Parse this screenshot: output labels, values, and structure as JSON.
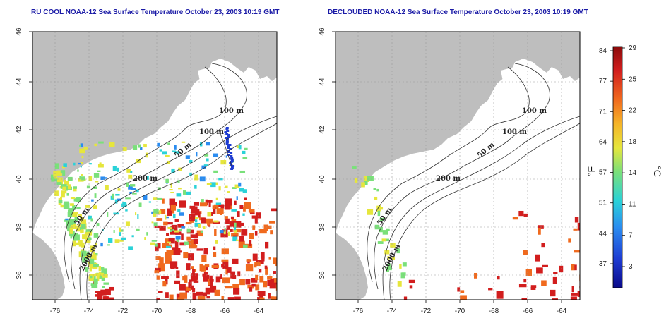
{
  "panels": [
    {
      "id": "left",
      "title": "RU COOL NOAA-12 Sea Surface Temperature October 23, 2003 10:19 GMT",
      "x_ticks": [
        "-76",
        "-74",
        "-72",
        "-70",
        "-68",
        "-66",
        "-64"
      ],
      "y_ticks": [
        "46",
        "44",
        "42",
        "40",
        "38",
        "36"
      ],
      "contour_labels": [
        "100 m",
        "100 m",
        "50 m",
        "200 m",
        "50 m",
        "2000 m"
      ],
      "cloud_masked": false
    },
    {
      "id": "right",
      "title": "DECLOUDED NOAA-12 Sea Surface Temperature October 23, 2003 10:19 GMT",
      "x_ticks": [
        "-76",
        "-74",
        "-72",
        "-70",
        "-68",
        "-66",
        "-64"
      ],
      "y_ticks": [
        "46",
        "44",
        "42",
        "40",
        "38",
        "36"
      ],
      "contour_labels": [
        "100 m",
        "100 m",
        "50 m",
        "200 m",
        "50 m",
        "2000 m"
      ],
      "cloud_masked": true
    }
  ],
  "colorbar": {
    "fahrenheit_label": "°F",
    "celsius_label": "°C",
    "fahrenheit_ticks": [
      "84",
      "77",
      "71",
      "64",
      "57",
      "51",
      "44",
      "37"
    ],
    "celsius_ticks": [
      "29",
      "25",
      "22",
      "18",
      "14",
      "11",
      "7",
      "3"
    ],
    "colors": [
      "#0a0a8a",
      "#1e3cd2",
      "#2a8cf0",
      "#2ad2d8",
      "#7ae07a",
      "#e6e63c",
      "#f5b428",
      "#f06a1e",
      "#d21e1e",
      "#8a0a0a"
    ]
  },
  "colors": {
    "land": "#bebebe",
    "water": "#ffffff",
    "title": "#1a1aa6",
    "contour": "#333333"
  }
}
